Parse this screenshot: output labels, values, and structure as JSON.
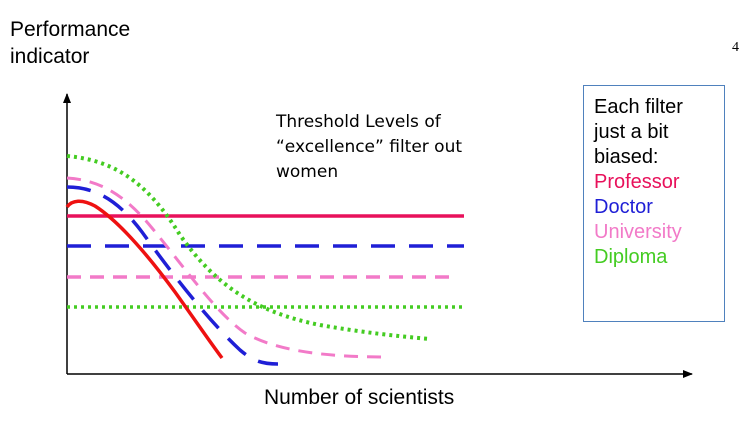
{
  "y_axis_label_lines": [
    "Performance",
    "indicator"
  ],
  "x_axis_label": "Number of scientists",
  "slide_number": "4",
  "annotation_lines": [
    "Threshold Levels of",
    "“excellence” filter out",
    "women"
  ],
  "legend": {
    "heading_lines": [
      "Each filter",
      "just a bit",
      "biased:"
    ],
    "items": [
      {
        "label": "Professor",
        "color": "#e8115b"
      },
      {
        "label": "Doctor",
        "color": "#1f1fd6"
      },
      {
        "label": "University",
        "color": "#f27ac8"
      },
      {
        "label": "Diploma",
        "color": "#44cc22"
      }
    ],
    "border_color": "#4f81bd"
  },
  "colors": {
    "professor_threshold": "#e8115b",
    "professor_curve": "#ee1111",
    "doctor": "#1f1fd6",
    "university": "#f27ac8",
    "diploma": "#44cc22"
  }
}
